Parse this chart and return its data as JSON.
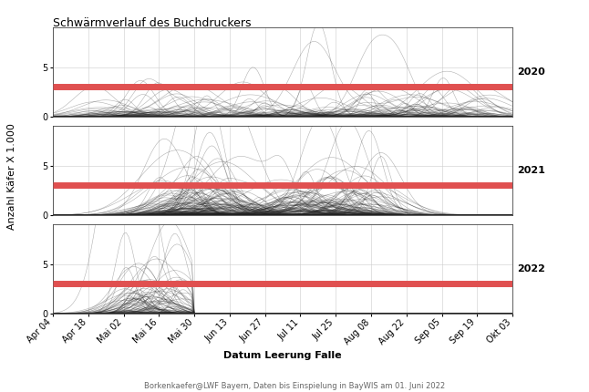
{
  "title": "Schwärmverlauf des Buchdruckers",
  "ylabel": "Anzahl Käfer X 1.000",
  "xlabel": "Datum Leerung Falle",
  "footer": "Borkenkaefer@LWF Bayern, Daten bis Einspielung in BayWIS am 01. Juni 2022",
  "years": [
    "2020",
    "2021",
    "2022"
  ],
  "red_line_y": 3.0,
  "ylim_2020": [
    0,
    9
  ],
  "ylim_2021": [
    0,
    9
  ],
  "ylim_2022": [
    0,
    9
  ],
  "x_tick_labels": [
    "Apr 04",
    "Apr 18",
    "Mai 02",
    "Mai 16",
    "Mai 30",
    "Jun 13",
    "Jun 27",
    "Jul 11",
    "Jul 25",
    "Aug 08",
    "Aug 22",
    "Sep 05",
    "Sep 19",
    "Okt 03"
  ],
  "x_tick_days": [
    0,
    14,
    28,
    42,
    56,
    70,
    84,
    98,
    112,
    126,
    140,
    154,
    168,
    182
  ],
  "line_color": "#222222",
  "line_alpha": 0.35,
  "line_width": 0.4,
  "red_color": "#E05050",
  "red_linewidth": 5,
  "background_color": "#ffffff",
  "grid_color": "#cccccc",
  "title_fontsize": 9,
  "axis_fontsize": 8,
  "tick_fontsize": 7,
  "footer_fontsize": 6,
  "year_fontsize": 8,
  "n_lines_2020": 200,
  "n_lines_2021": 180,
  "n_lines_2022": 120
}
